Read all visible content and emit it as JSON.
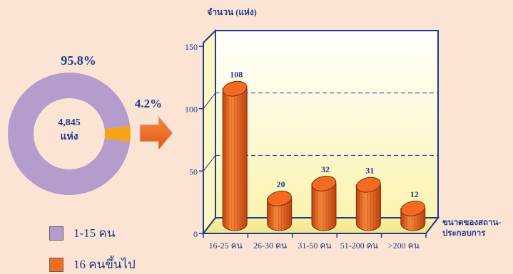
{
  "chart_data": [
    {
      "type": "pie",
      "total_value": "4,845",
      "total_unit": "แห่ง",
      "slices": [
        {
          "label": "1-15 คน",
          "percent": 95.8,
          "percent_text": "95.8%",
          "color": "#b49ccc"
        },
        {
          "label": "16 คนขึ้นไป",
          "percent": 4.2,
          "percent_text": "4.2%",
          "color": "#f7a21b"
        }
      ],
      "legend_colors": [
        "#b49ccc",
        "#f26b21"
      ]
    },
    {
      "type": "bar",
      "title": "",
      "ylabel": "จำนวน (แห่ง)",
      "xlabel": "ขนาดของสถาน-ประกอบการ",
      "xlabel_lines": [
        "ขนาดของสถาน-",
        "ประกอบการ"
      ],
      "ylim": [
        0,
        150
      ],
      "yticks": [
        0,
        50,
        100,
        150
      ],
      "categories": [
        "16-25 คน",
        "26-30 คน",
        "31-50 คน",
        "51-200 คน",
        ">200 คน"
      ],
      "values": [
        108,
        20,
        32,
        31,
        12
      ],
      "bar_color": "#f06a1f"
    }
  ]
}
